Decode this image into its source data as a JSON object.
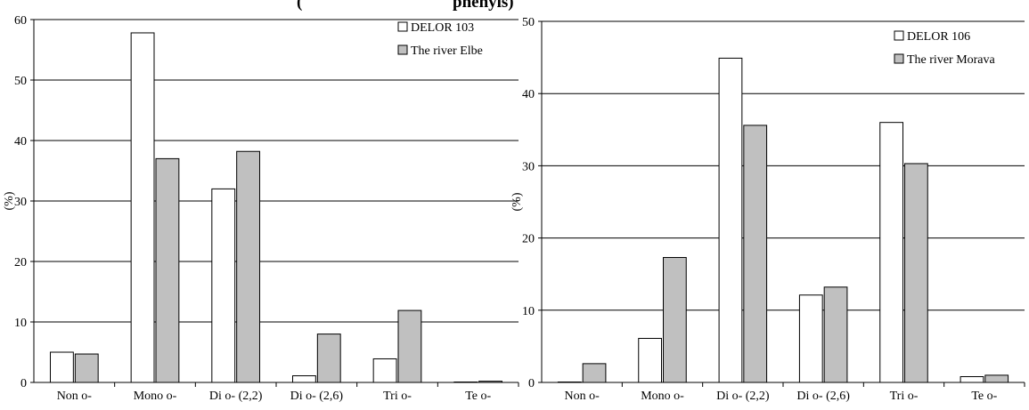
{
  "chart_data": [
    {
      "type": "bar",
      "title_fragment": "(",
      "ylabel": "(%)",
      "ylim": [
        0,
        60
      ],
      "yticks": [
        0,
        10,
        20,
        30,
        40,
        50,
        60
      ],
      "categories": [
        "Non o-",
        "Mono o-",
        "Di o- (2,2)",
        "Di o- (2,6)",
        "Tri o-",
        "Te o-"
      ],
      "series": [
        {
          "name": "DELOR 103",
          "color": "#ffffff",
          "values": [
            5.0,
            57.8,
            32.0,
            1.1,
            3.9,
            0.0
          ]
        },
        {
          "name": "The river Elbe",
          "color": "#c0c0c0",
          "values": [
            4.7,
            37.0,
            38.2,
            8.0,
            11.9,
            0.2
          ]
        }
      ],
      "grid": true,
      "legend_position": "top-right"
    },
    {
      "type": "bar",
      "title_fragment": "phenyls)",
      "ylabel": "(%)",
      "ylim": [
        0,
        50
      ],
      "yticks": [
        0,
        10,
        20,
        30,
        40,
        50
      ],
      "categories": [
        "Non o-",
        "Mono o-",
        "Di o- (2,2)",
        "Di o- (2,6)",
        "Tri o-",
        "Te o-"
      ],
      "series": [
        {
          "name": "DELOR 106",
          "color": "#ffffff",
          "values": [
            0.0,
            6.1,
            44.9,
            12.1,
            36.0,
            0.8
          ]
        },
        {
          "name": "The river Morava",
          "color": "#c0c0c0",
          "values": [
            2.6,
            17.3,
            35.6,
            13.2,
            30.3,
            1.0
          ]
        }
      ],
      "grid": true,
      "legend_position": "top-right"
    }
  ]
}
